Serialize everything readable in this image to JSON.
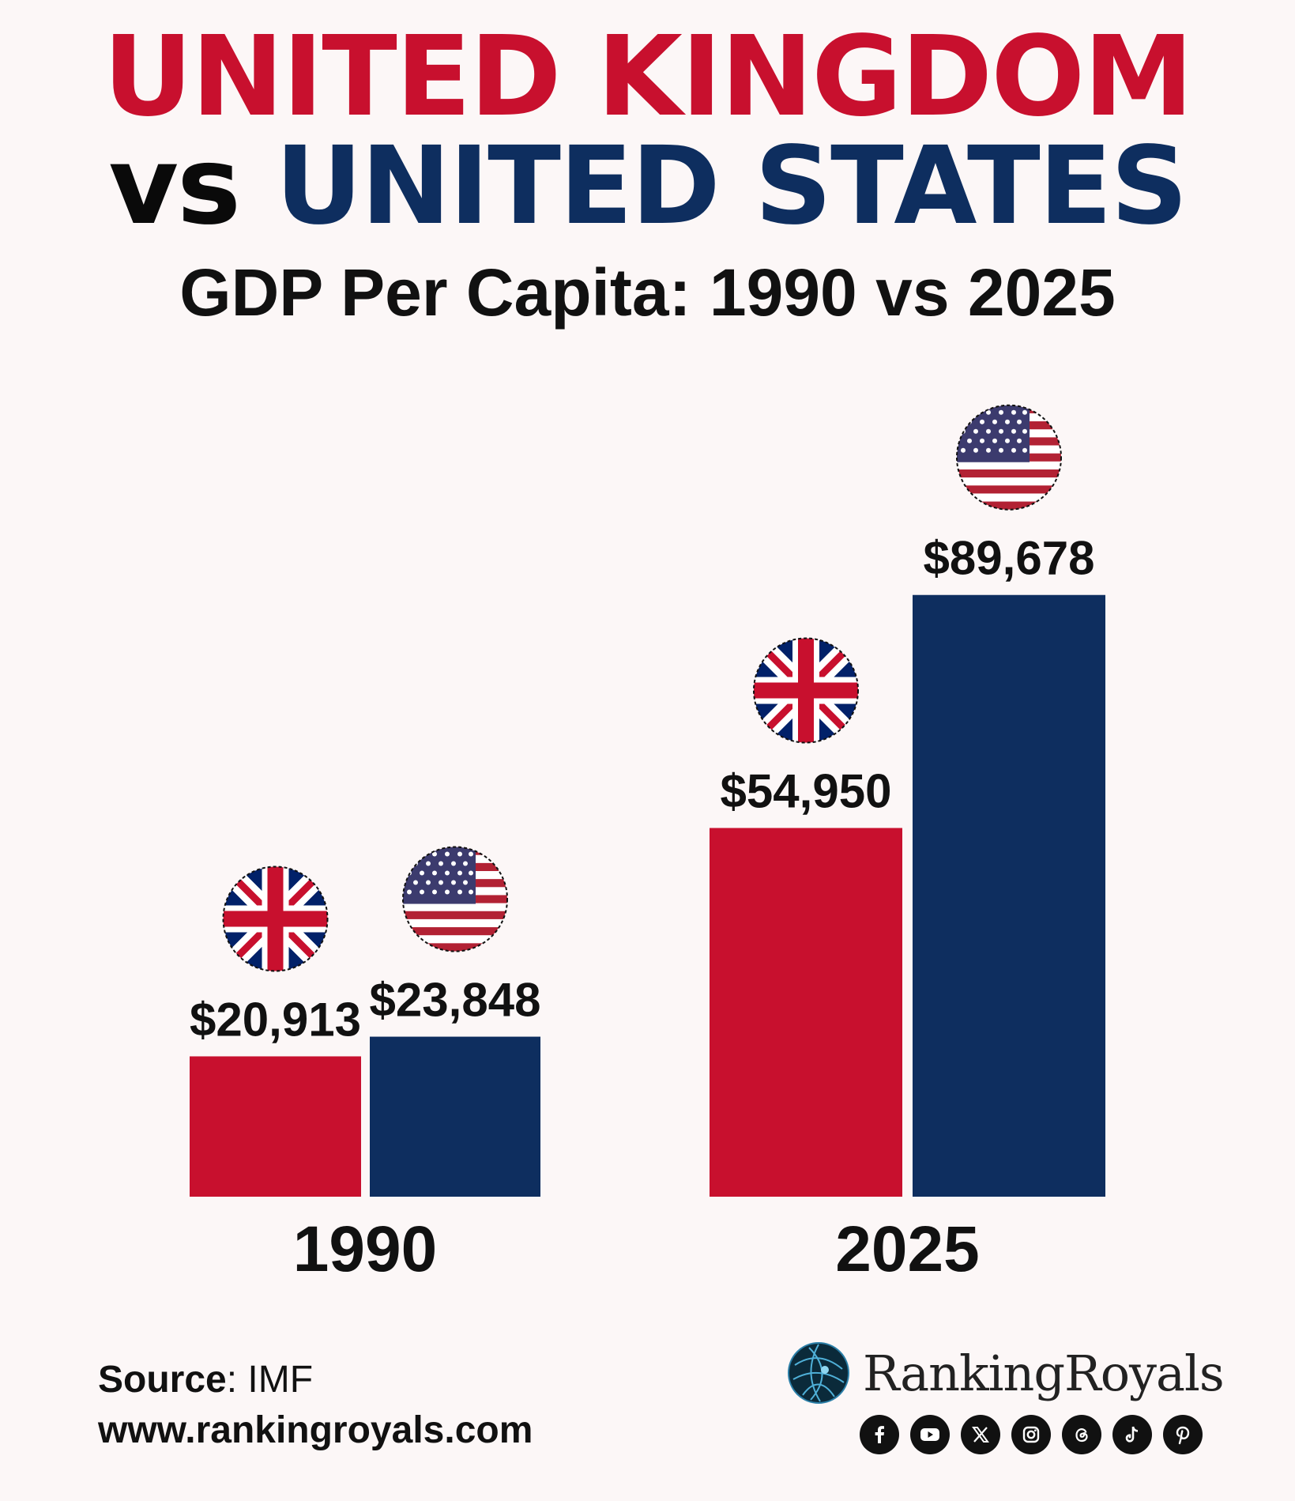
{
  "header": {
    "title_line1": "UNITED KINGDOM",
    "vs_word": "vs",
    "title_line2": "UNITED STATES",
    "subtitle": "GDP Per Capita:  1990 vs 2025"
  },
  "colors": {
    "uk": "#c8102e",
    "us": "#0e2e5f",
    "text": "#111111",
    "background": "#fcf7f7"
  },
  "chart_data": {
    "type": "bar",
    "title": "GDP Per Capita:  1990 vs 2025",
    "categories": [
      "1990",
      "2025"
    ],
    "series": [
      {
        "name": "United Kingdom",
        "color": "#c8102e",
        "flag": "uk-flag-icon",
        "values": [
          20913,
          54950
        ],
        "labels": [
          "$20,913",
          "$54,950"
        ]
      },
      {
        "name": "United States",
        "color": "#0e2e5f",
        "flag": "us-flag-icon",
        "values": [
          23848,
          89678
        ],
        "labels": [
          "$23,848",
          "$89,678"
        ]
      }
    ],
    "xlabel": "",
    "ylabel": "",
    "grid": false,
    "legend": "none"
  },
  "footer": {
    "source_label": "Source",
    "source_value": ": IMF",
    "website": "www.rankingroyals.com",
    "brand_name": "RankingRoyals",
    "social_icons": [
      "facebook-icon",
      "youtube-icon",
      "x-icon",
      "instagram-icon",
      "threads-icon",
      "tiktok-icon",
      "pinterest-icon"
    ]
  }
}
